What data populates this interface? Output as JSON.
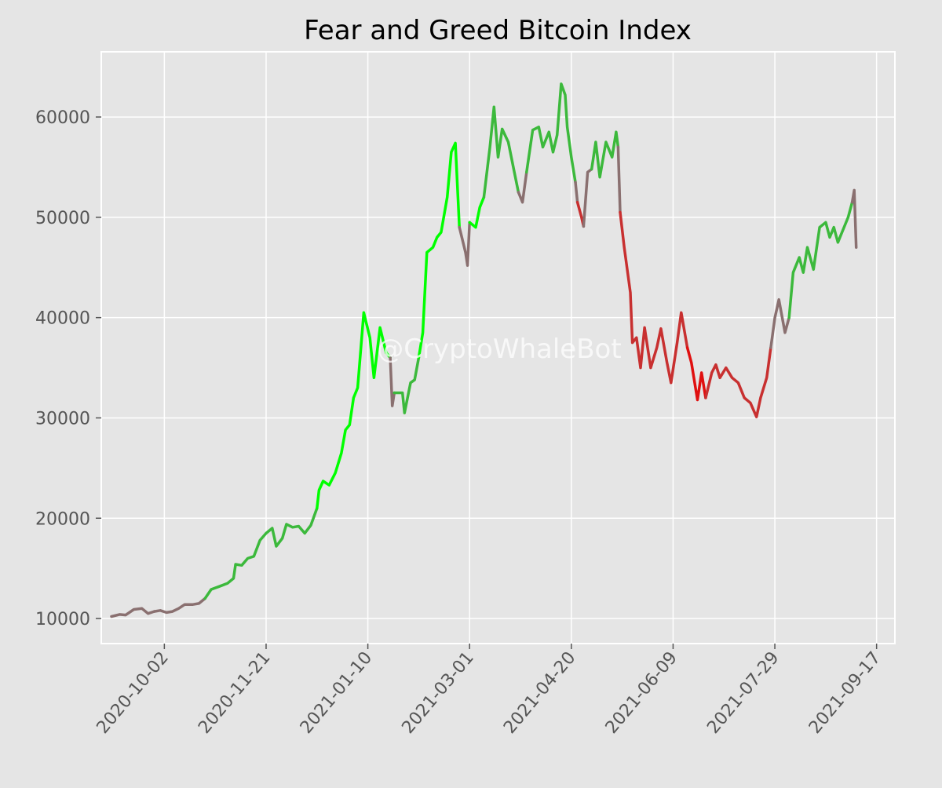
{
  "watermark": "@CryptoWhaleBot",
  "colors": {
    "background": "#e5e5e5",
    "grid": "#ffffff",
    "extreme_greed": "#00ff00",
    "greed": "#3cb93c",
    "neutral": "#8a7070",
    "fear": "#c83030",
    "extreme_fear": "#e01010"
  },
  "chart_data": {
    "type": "line",
    "title": "Fear and Greed Bitcoin Index",
    "xlabel": "",
    "ylabel": "",
    "x_ticks": [
      "2020-10-02",
      "2020-11-21",
      "2021-01-10",
      "2021-03-01",
      "2021-04-20",
      "2021-06-09",
      "2021-07-29",
      "2021-09-17"
    ],
    "y_ticks": [
      10000,
      20000,
      30000,
      40000,
      50000,
      60000
    ],
    "xlim": [
      "2020-09-01",
      "2021-09-26"
    ],
    "ylim": [
      7500,
      66500
    ],
    "grid": true,
    "legend": "none",
    "color_encoding": "line segment color follows Fear and Greed sentiment (green = greed, gray = neutral, red = fear)",
    "series": [
      {
        "segments": [
          {
            "sentiment": "neutral",
            "points": [
              [
                "2020-09-06",
                10200
              ],
              [
                "2020-09-10",
                10400
              ],
              [
                "2020-09-13",
                10350
              ],
              [
                "2020-09-17",
                10900
              ],
              [
                "2020-09-21",
                11000
              ],
              [
                "2020-09-24",
                10500
              ],
              [
                "2020-09-27",
                10700
              ]
            ]
          },
          {
            "sentiment": "neutral",
            "points": [
              [
                "2020-09-27",
                10700
              ],
              [
                "2020-09-30",
                10800
              ],
              [
                "2020-10-03",
                10600
              ],
              [
                "2020-10-06",
                10700
              ],
              [
                "2020-10-09",
                11000
              ],
              [
                "2020-10-12",
                11400
              ],
              [
                "2020-10-16",
                11400
              ],
              [
                "2020-10-19",
                11500
              ],
              [
                "2020-10-22",
                12000
              ]
            ]
          },
          {
            "sentiment": "greed",
            "points": [
              [
                "2020-10-22",
                12000
              ],
              [
                "2020-10-25",
                12900
              ],
              [
                "2020-10-29",
                13200
              ],
              [
                "2020-11-02",
                13500
              ],
              [
                "2020-11-05",
                14000
              ],
              [
                "2020-11-06",
                15400
              ],
              [
                "2020-11-09",
                15300
              ],
              [
                "2020-11-12",
                16000
              ],
              [
                "2020-11-15",
                16200
              ],
              [
                "2020-11-18",
                17800
              ],
              [
                "2020-11-21",
                18500
              ],
              [
                "2020-11-24",
                19000
              ],
              [
                "2020-11-26",
                17200
              ],
              [
                "2020-11-29",
                18000
              ],
              [
                "2020-12-01",
                19400
              ],
              [
                "2020-12-04",
                19100
              ],
              [
                "2020-12-07",
                19200
              ],
              [
                "2020-12-10",
                18500
              ],
              [
                "2020-12-13",
                19300
              ],
              [
                "2020-12-16",
                21000
              ]
            ]
          },
          {
            "sentiment": "extreme_greed",
            "points": [
              [
                "2020-12-16",
                21000
              ],
              [
                "2020-12-17",
                22800
              ],
              [
                "2020-12-19",
                23700
              ],
              [
                "2020-12-22",
                23300
              ],
              [
                "2020-12-25",
                24500
              ],
              [
                "2020-12-28",
                26500
              ],
              [
                "2020-12-30",
                28800
              ],
              [
                "2021-01-01",
                29300
              ],
              [
                "2021-01-03",
                32000
              ],
              [
                "2021-01-05",
                33000
              ],
              [
                "2021-01-08",
                40500
              ],
              [
                "2021-01-11",
                38000
              ],
              [
                "2021-01-13",
                34000
              ],
              [
                "2021-01-16",
                39000
              ],
              [
                "2021-01-19",
                36500
              ],
              [
                "2021-01-21",
                36000
              ]
            ]
          },
          {
            "sentiment": "neutral",
            "points": [
              [
                "2021-01-21",
                36000
              ],
              [
                "2021-01-22",
                31200
              ],
              [
                "2021-01-23",
                32500
              ]
            ]
          },
          {
            "sentiment": "greed",
            "points": [
              [
                "2021-01-23",
                32500
              ],
              [
                "2021-01-27",
                32500
              ],
              [
                "2021-01-28",
                30500
              ],
              [
                "2021-01-31",
                33500
              ],
              [
                "2021-02-02",
                33800
              ],
              [
                "2021-02-04",
                36000
              ]
            ]
          },
          {
            "sentiment": "extreme_greed",
            "points": [
              [
                "2021-02-04",
                36000
              ],
              [
                "2021-02-06",
                38500
              ],
              [
                "2021-02-08",
                46500
              ],
              [
                "2021-02-11",
                47000
              ],
              [
                "2021-02-13",
                48000
              ],
              [
                "2021-02-15",
                48500
              ],
              [
                "2021-02-18",
                52000
              ],
              [
                "2021-02-20",
                56500
              ],
              [
                "2021-02-22",
                57400
              ],
              [
                "2021-02-24",
                49000
              ]
            ]
          },
          {
            "sentiment": "neutral",
            "points": [
              [
                "2021-02-24",
                49000
              ],
              [
                "2021-02-27",
                46500
              ],
              [
                "2021-02-28",
                45200
              ],
              [
                "2021-03-01",
                49500
              ]
            ]
          },
          {
            "sentiment": "extreme_greed",
            "points": [
              [
                "2021-03-01",
                49500
              ],
              [
                "2021-03-04",
                49000
              ],
              [
                "2021-03-06",
                51000
              ],
              [
                "2021-03-08",
                52000
              ]
            ]
          },
          {
            "sentiment": "greed",
            "points": [
              [
                "2021-03-08",
                52000
              ],
              [
                "2021-03-11",
                57000
              ],
              [
                "2021-03-13",
                61000
              ],
              [
                "2021-03-15",
                56000
              ],
              [
                "2021-03-17",
                58800
              ],
              [
                "2021-03-20",
                57500
              ],
              [
                "2021-03-23",
                54500
              ],
              [
                "2021-03-25",
                52500
              ]
            ]
          },
          {
            "sentiment": "neutral",
            "points": [
              [
                "2021-03-25",
                52500
              ],
              [
                "2021-03-27",
                51500
              ],
              [
                "2021-03-29",
                54500
              ]
            ]
          },
          {
            "sentiment": "greed",
            "points": [
              [
                "2021-03-29",
                54500
              ],
              [
                "2021-04-01",
                58700
              ],
              [
                "2021-04-04",
                59000
              ],
              [
                "2021-04-06",
                57000
              ],
              [
                "2021-04-09",
                58500
              ],
              [
                "2021-04-11",
                56500
              ],
              [
                "2021-04-13",
                58200
              ],
              [
                "2021-04-15",
                63300
              ],
              [
                "2021-04-17",
                62200
              ],
              [
                "2021-04-18",
                59000
              ],
              [
                "2021-04-20",
                56000
              ],
              [
                "2021-04-22",
                53500
              ]
            ]
          },
          {
            "sentiment": "neutral",
            "points": [
              [
                "2021-04-22",
                53500
              ],
              [
                "2021-04-23",
                51500
              ]
            ]
          },
          {
            "sentiment": "fear",
            "points": [
              [
                "2021-04-23",
                51500
              ],
              [
                "2021-04-25",
                50000
              ],
              [
                "2021-04-26",
                49100
              ]
            ]
          },
          {
            "sentiment": "neutral",
            "points": [
              [
                "2021-04-26",
                49100
              ],
              [
                "2021-04-28",
                54500
              ],
              [
                "2021-04-30",
                54800
              ]
            ]
          },
          {
            "sentiment": "greed",
            "points": [
              [
                "2021-04-30",
                54800
              ],
              [
                "2021-05-02",
                57500
              ],
              [
                "2021-05-04",
                54000
              ],
              [
                "2021-05-07",
                57500
              ],
              [
                "2021-05-10",
                56000
              ],
              [
                "2021-05-12",
                58500
              ],
              [
                "2021-05-13",
                57000
              ]
            ]
          },
          {
            "sentiment": "neutral",
            "points": [
              [
                "2021-05-13",
                57000
              ],
              [
                "2021-05-14",
                50500
              ]
            ]
          },
          {
            "sentiment": "fear",
            "points": [
              [
                "2021-05-14",
                50500
              ],
              [
                "2021-05-16",
                47000
              ],
              [
                "2021-05-19",
                42500
              ],
              [
                "2021-05-20",
                37500
              ],
              [
                "2021-05-22",
                38000
              ],
              [
                "2021-05-24",
                35000
              ],
              [
                "2021-05-26",
                39000
              ],
              [
                "2021-05-29",
                35000
              ],
              [
                "2021-06-01",
                37000
              ],
              [
                "2021-06-03",
                38900
              ],
              [
                "2021-06-06",
                35500
              ],
              [
                "2021-06-08",
                33500
              ],
              [
                "2021-06-11",
                37500
              ],
              [
                "2021-06-13",
                40500
              ],
              [
                "2021-06-16",
                37000
              ]
            ]
          },
          {
            "sentiment": "extreme_fear",
            "points": [
              [
                "2021-06-16",
                37000
              ],
              [
                "2021-06-18",
                35500
              ],
              [
                "2021-06-21",
                31800
              ],
              [
                "2021-06-23",
                34500
              ],
              [
                "2021-06-25",
                32000
              ]
            ]
          },
          {
            "sentiment": "fear",
            "points": [
              [
                "2021-06-25",
                32000
              ],
              [
                "2021-06-28",
                34500
              ],
              [
                "2021-06-30",
                35300
              ],
              [
                "2021-07-02",
                34000
              ],
              [
                "2021-07-05",
                35000
              ],
              [
                "2021-07-08",
                34000
              ],
              [
                "2021-07-11",
                33500
              ],
              [
                "2021-07-14",
                32000
              ],
              [
                "2021-07-17",
                31500
              ],
              [
                "2021-07-20",
                30100
              ],
              [
                "2021-07-22",
                32000
              ],
              [
                "2021-07-25",
                34000
              ],
              [
                "2021-07-27",
                37000
              ]
            ]
          },
          {
            "sentiment": "neutral",
            "points": [
              [
                "2021-07-27",
                37000
              ],
              [
                "2021-07-29",
                40000
              ],
              [
                "2021-07-31",
                41800
              ],
              [
                "2021-08-03",
                38500
              ],
              [
                "2021-08-05",
                40000
              ]
            ]
          },
          {
            "sentiment": "greed",
            "points": [
              [
                "2021-08-05",
                40000
              ],
              [
                "2021-08-07",
                44500
              ],
              [
                "2021-08-10",
                46000
              ],
              [
                "2021-08-12",
                44500
              ],
              [
                "2021-08-14",
                47000
              ],
              [
                "2021-08-17",
                44800
              ],
              [
                "2021-08-20",
                49000
              ],
              [
                "2021-08-23",
                49500
              ],
              [
                "2021-08-25",
                48000
              ],
              [
                "2021-08-27",
                49000
              ],
              [
                "2021-08-29",
                47500
              ],
              [
                "2021-08-31",
                48500
              ],
              [
                "2021-09-03",
                50000
              ],
              [
                "2021-09-05",
                51500
              ]
            ]
          },
          {
            "sentiment": "neutral",
            "points": [
              [
                "2021-09-05",
                51500
              ],
              [
                "2021-09-06",
                52700
              ],
              [
                "2021-09-07",
                47000
              ]
            ]
          }
        ]
      }
    ]
  }
}
